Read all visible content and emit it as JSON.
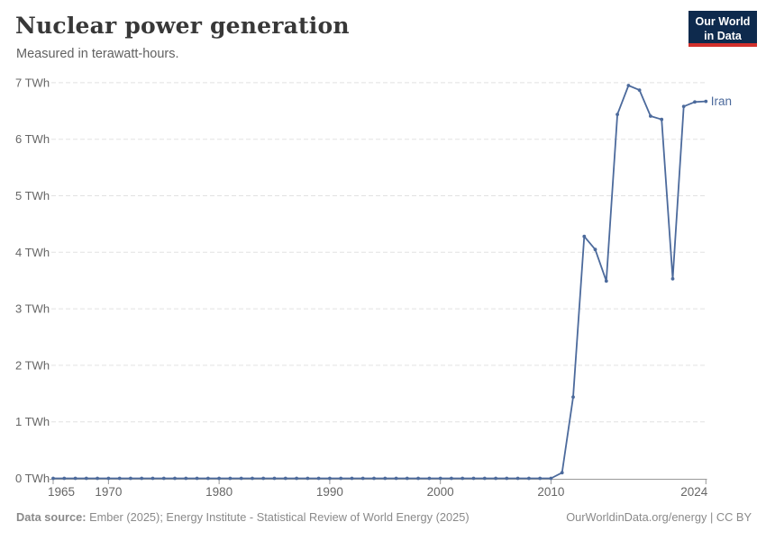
{
  "header": {
    "title": "Nuclear power generation",
    "subtitle": "Measured in terawatt-hours.",
    "logo": {
      "line1": "Our World",
      "line2": "in Data"
    }
  },
  "colors": {
    "line": "#4C6A9C",
    "grid": "#e2e2e2",
    "axis": "#9a9a9a",
    "tick_label": "#666666",
    "entity_label": "#4C6A9C",
    "logo_bg": "#0e2a4d",
    "logo_accent": "#d2302c"
  },
  "chart_data": {
    "type": "line",
    "title": "Nuclear power generation",
    "subtitle": "Measured in terawatt-hours.",
    "unit": "TWh",
    "xlim": [
      1965,
      2024
    ],
    "ylim": [
      0,
      7
    ],
    "y_ticks": [
      0,
      1,
      2,
      3,
      4,
      5,
      6,
      7
    ],
    "x_ticks": [
      1965,
      1970,
      1980,
      1990,
      2000,
      2010,
      2024
    ],
    "grid": "horizontal-dashed",
    "legend_position": "end-of-line-label",
    "x": [
      1965,
      1966,
      1967,
      1968,
      1969,
      1970,
      1971,
      1972,
      1973,
      1974,
      1975,
      1976,
      1977,
      1978,
      1979,
      1980,
      1981,
      1982,
      1983,
      1984,
      1985,
      1986,
      1987,
      1988,
      1989,
      1990,
      1991,
      1992,
      1993,
      1994,
      1995,
      1996,
      1997,
      1998,
      1999,
      2000,
      2001,
      2002,
      2003,
      2004,
      2005,
      2006,
      2007,
      2008,
      2009,
      2010,
      2011,
      2012,
      2013,
      2014,
      2015,
      2016,
      2017,
      2018,
      2019,
      2020,
      2021,
      2022,
      2023,
      2024
    ],
    "series": [
      {
        "name": "Iran",
        "values": [
          0,
          0,
          0,
          0,
          0,
          0,
          0,
          0,
          0,
          0,
          0,
          0,
          0,
          0,
          0,
          0,
          0,
          0,
          0,
          0,
          0,
          0,
          0,
          0,
          0,
          0,
          0,
          0,
          0,
          0,
          0,
          0,
          0,
          0,
          0,
          0,
          0,
          0,
          0,
          0,
          0,
          0,
          0,
          0,
          0,
          0,
          0.1,
          1.44,
          4.28,
          4.05,
          3.49,
          6.44,
          6.95,
          6.87,
          6.41,
          6.35,
          3.53,
          6.58,
          6.66,
          6.67
        ]
      }
    ]
  },
  "footer": {
    "source_label": "Data source:",
    "source_text": "Ember (2025); Energy Institute - Statistical Review of World Energy (2025)",
    "credit": "OurWorldinData.org/energy | CC BY"
  }
}
